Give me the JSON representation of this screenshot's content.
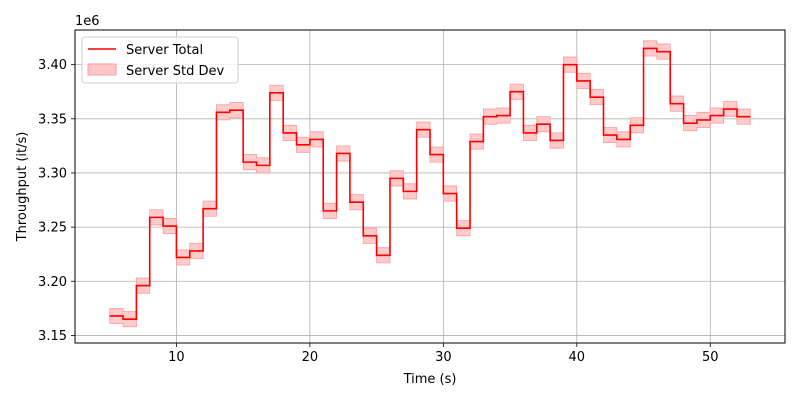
{
  "chart_data": {
    "type": "line",
    "title": "",
    "xlabel": "Time (s)",
    "ylabel": "Throughput (it/s)",
    "y_multiplier": "1e6",
    "xlim": [
      2.4,
      55.6
    ],
    "ylim": [
      3.143,
      3.432
    ],
    "x_ticks": [
      10,
      20,
      30,
      40,
      50
    ],
    "y_ticks": [
      3.15,
      3.2,
      3.25,
      3.3,
      3.35,
      3.4
    ],
    "x_tick_labels": [
      "10",
      "20",
      "30",
      "40",
      "50"
    ],
    "y_tick_labels": [
      "3.15",
      "3.20",
      "3.25",
      "3.30",
      "3.35",
      "3.40"
    ],
    "grid": true,
    "legend_position": "top-left",
    "step": "post",
    "series": [
      {
        "name": "Server Total",
        "color": "#ff0000",
        "x": [
          5,
          6,
          7,
          8,
          9,
          10,
          11,
          12,
          13,
          14,
          15,
          16,
          17,
          18,
          19,
          20,
          21,
          22,
          23,
          24,
          25,
          26,
          27,
          28,
          29,
          30,
          31,
          32,
          33,
          34,
          35,
          36,
          37,
          38,
          39,
          40,
          41,
          42,
          43,
          44,
          45,
          46,
          47,
          48,
          49,
          50,
          51,
          52,
          53
        ],
        "values": [
          3.168,
          3.165,
          3.196,
          3.259,
          3.251,
          3.222,
          3.228,
          3.267,
          3.356,
          3.358,
          3.31,
          3.307,
          3.374,
          3.337,
          3.326,
          3.331,
          3.265,
          3.318,
          3.273,
          3.242,
          3.224,
          3.295,
          3.283,
          3.34,
          3.317,
          3.281,
          3.249,
          3.329,
          3.352,
          3.353,
          3.375,
          3.337,
          3.345,
          3.33,
          3.4,
          3.385,
          3.37,
          3.335,
          3.331,
          3.344,
          3.415,
          3.412,
          3.364,
          3.346,
          3.349,
          3.353,
          3.359,
          3.352,
          3.352
        ]
      }
    ],
    "bands": [
      {
        "name": "Server Std Dev",
        "color": "#ffc8c8",
        "stroke": "#ff9a9a",
        "halfwidth": 0.007
      }
    ]
  }
}
